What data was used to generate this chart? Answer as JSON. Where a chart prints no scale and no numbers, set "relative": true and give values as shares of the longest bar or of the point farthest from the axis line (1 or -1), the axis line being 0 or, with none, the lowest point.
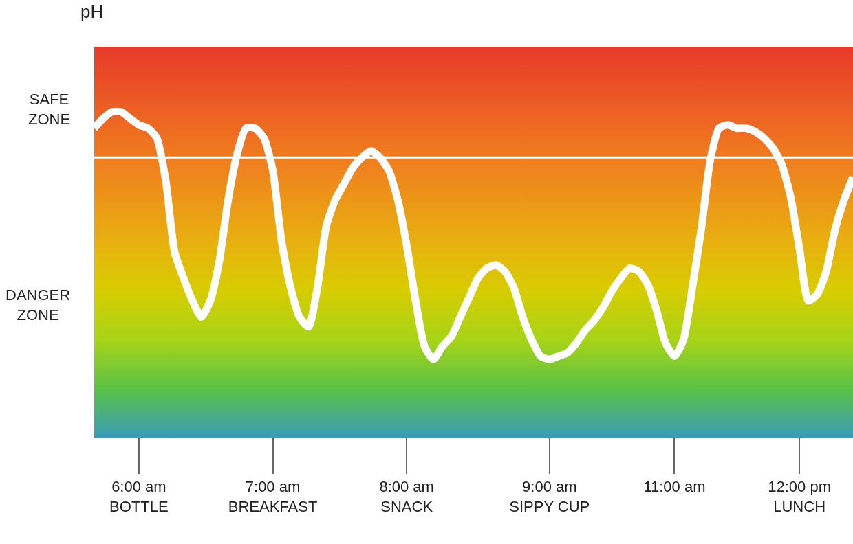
{
  "chart_data": {
    "type": "line",
    "relative": true,
    "categories": [
      null,
      null,
      null,
      null,
      null,
      "6:00 am\nBOTTLE",
      null,
      null,
      null,
      null,
      null,
      null,
      null,
      null,
      null,
      null,
      null,
      null,
      null,
      null,
      "7:00 am\nBREAKFAST",
      null,
      null,
      null,
      null,
      null,
      null,
      null,
      null,
      null,
      null,
      null,
      null,
      null,
      null,
      "8:00 am\nSNACK",
      null,
      null,
      null,
      null,
      null,
      null,
      null,
      null,
      null,
      null,
      null,
      null,
      null,
      null,
      null,
      "9:00 am\nSIPPY CUP",
      null,
      null,
      null,
      null,
      null,
      null,
      null,
      null,
      null,
      null,
      null,
      null,
      null,
      "11:00 am",
      null,
      null,
      null,
      null,
      null,
      null,
      null,
      null,
      null,
      null,
      null,
      null,
      null,
      "12:00 pm\nLUNCH",
      null,
      null,
      null,
      null,
      null,
      null
    ],
    "series": [
      {
        "color": "#ffffff",
        "values": [
          0.95,
          0.98,
          1,
          1,
          0.98,
          0.96,
          0.95,
          0.92,
          0.79,
          0.57,
          0.49,
          0.42,
          0.37,
          0.42,
          0.54,
          0.73,
          0.87,
          0.95,
          0.95,
          0.92,
          0.82,
          0.6,
          0.46,
          0.37,
          0.34,
          0.46,
          0.65,
          0.73,
          0.78,
          0.83,
          0.86,
          0.88,
          0.86,
          0.82,
          0.73,
          0.59,
          0.42,
          0.28,
          0.24,
          0.28,
          0.31,
          0.37,
          0.43,
          0.49,
          0.52,
          0.53,
          0.51,
          0.46,
          0.37,
          0.3,
          0.25,
          0.24,
          0.25,
          0.26,
          0.29,
          0.33,
          0.36,
          0.4,
          0.45,
          0.49,
          0.52,
          0.51,
          0.47,
          0.39,
          0.29,
          0.25,
          0.3,
          0.46,
          0.64,
          0.85,
          0.95,
          0.96,
          0.95,
          0.95,
          0.94,
          0.92,
          0.89,
          0.84,
          0.74,
          0.58,
          0.42,
          0.44,
          0.51,
          0.64,
          0.73,
          0.8
        ]
      }
    ],
    "ref_lines": [
      {
        "axis": "y",
        "value": 0.86,
        "color": "#ffffff"
      }
    ],
    "annotations": [
      "pH",
      "SAFE\nZONE",
      "DANGER\nZONE"
    ],
    "grid": false,
    "legend": false,
    "marker": "none",
    "line_style": "solid"
  }
}
